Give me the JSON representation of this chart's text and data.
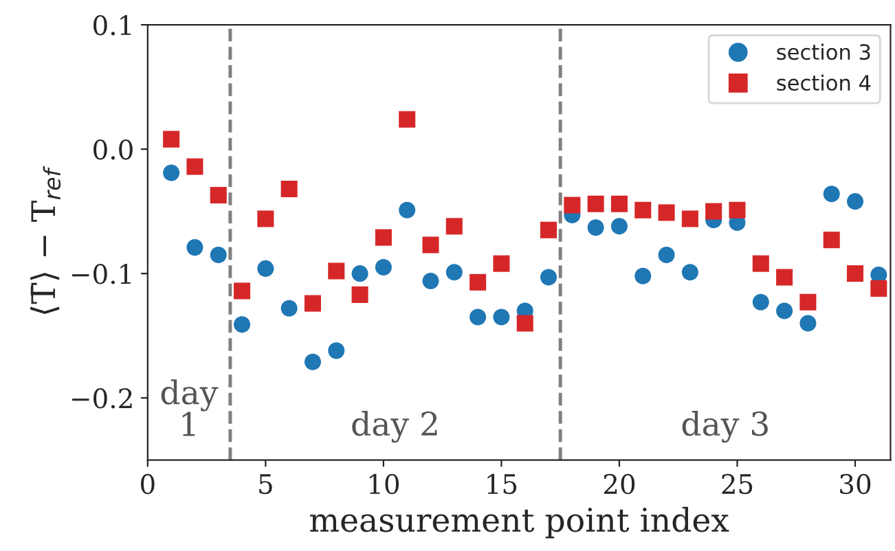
{
  "chart_data": {
    "type": "scatter",
    "xlabel": "measurement point index",
    "ylabel": "⟨T̄⟩ − T$_{ref}$",
    "x": [
      1,
      2,
      3,
      4,
      5,
      6,
      7,
      8,
      9,
      10,
      11,
      12,
      13,
      14,
      15,
      16,
      17,
      18,
      19,
      20,
      21,
      22,
      23,
      24,
      25,
      26,
      27,
      28,
      29,
      30,
      31
    ],
    "series": [
      {
        "name": "section 3",
        "color": "#1f77b4",
        "marker": "circle",
        "values": [
          -0.019,
          -0.079,
          -0.085,
          -0.141,
          -0.096,
          -0.128,
          -0.171,
          -0.162,
          -0.1,
          -0.095,
          -0.049,
          -0.106,
          -0.099,
          -0.135,
          -0.135,
          -0.13,
          -0.103,
          -0.053,
          -0.063,
          -0.062,
          -0.102,
          -0.085,
          -0.099,
          -0.057,
          -0.059,
          -0.123,
          -0.13,
          -0.14,
          -0.036,
          -0.042,
          -0.101
        ]
      },
      {
        "name": "section 4",
        "color": "#d62728",
        "marker": "square",
        "values": [
          0.008,
          -0.014,
          -0.037,
          -0.114,
          -0.056,
          -0.032,
          -0.124,
          -0.098,
          -0.117,
          -0.071,
          0.024,
          -0.077,
          -0.062,
          -0.107,
          -0.092,
          -0.14,
          -0.065,
          -0.045,
          -0.044,
          -0.044,
          -0.049,
          -0.051,
          -0.056,
          -0.05,
          -0.049,
          -0.092,
          -0.103,
          -0.123,
          -0.073,
          -0.1,
          -0.112
        ]
      }
    ],
    "ref_lines": [
      {
        "axis": "x",
        "value": 3.5,
        "color": "#808080",
        "line_style": "dashed"
      },
      {
        "axis": "x",
        "value": 17.5,
        "color": "#808080",
        "line_style": "dashed"
      }
    ],
    "annotations": [
      "day\n1",
      "day 2",
      "day 3"
    ],
    "xlim": [
      0,
      31.5
    ],
    "ylim": [
      -0.25,
      0.1
    ],
    "xticks": [
      0,
      5,
      10,
      15,
      20,
      25,
      30
    ],
    "yticks": [
      {
        "value": -0.2,
        "label": "−0.2"
      },
      {
        "value": -0.1,
        "label": "−0.1"
      },
      {
        "value": 0.0,
        "label": "0.0"
      },
      {
        "value": 0.1,
        "label": "0.1"
      }
    ],
    "legend": "top right",
    "grid": false
  }
}
